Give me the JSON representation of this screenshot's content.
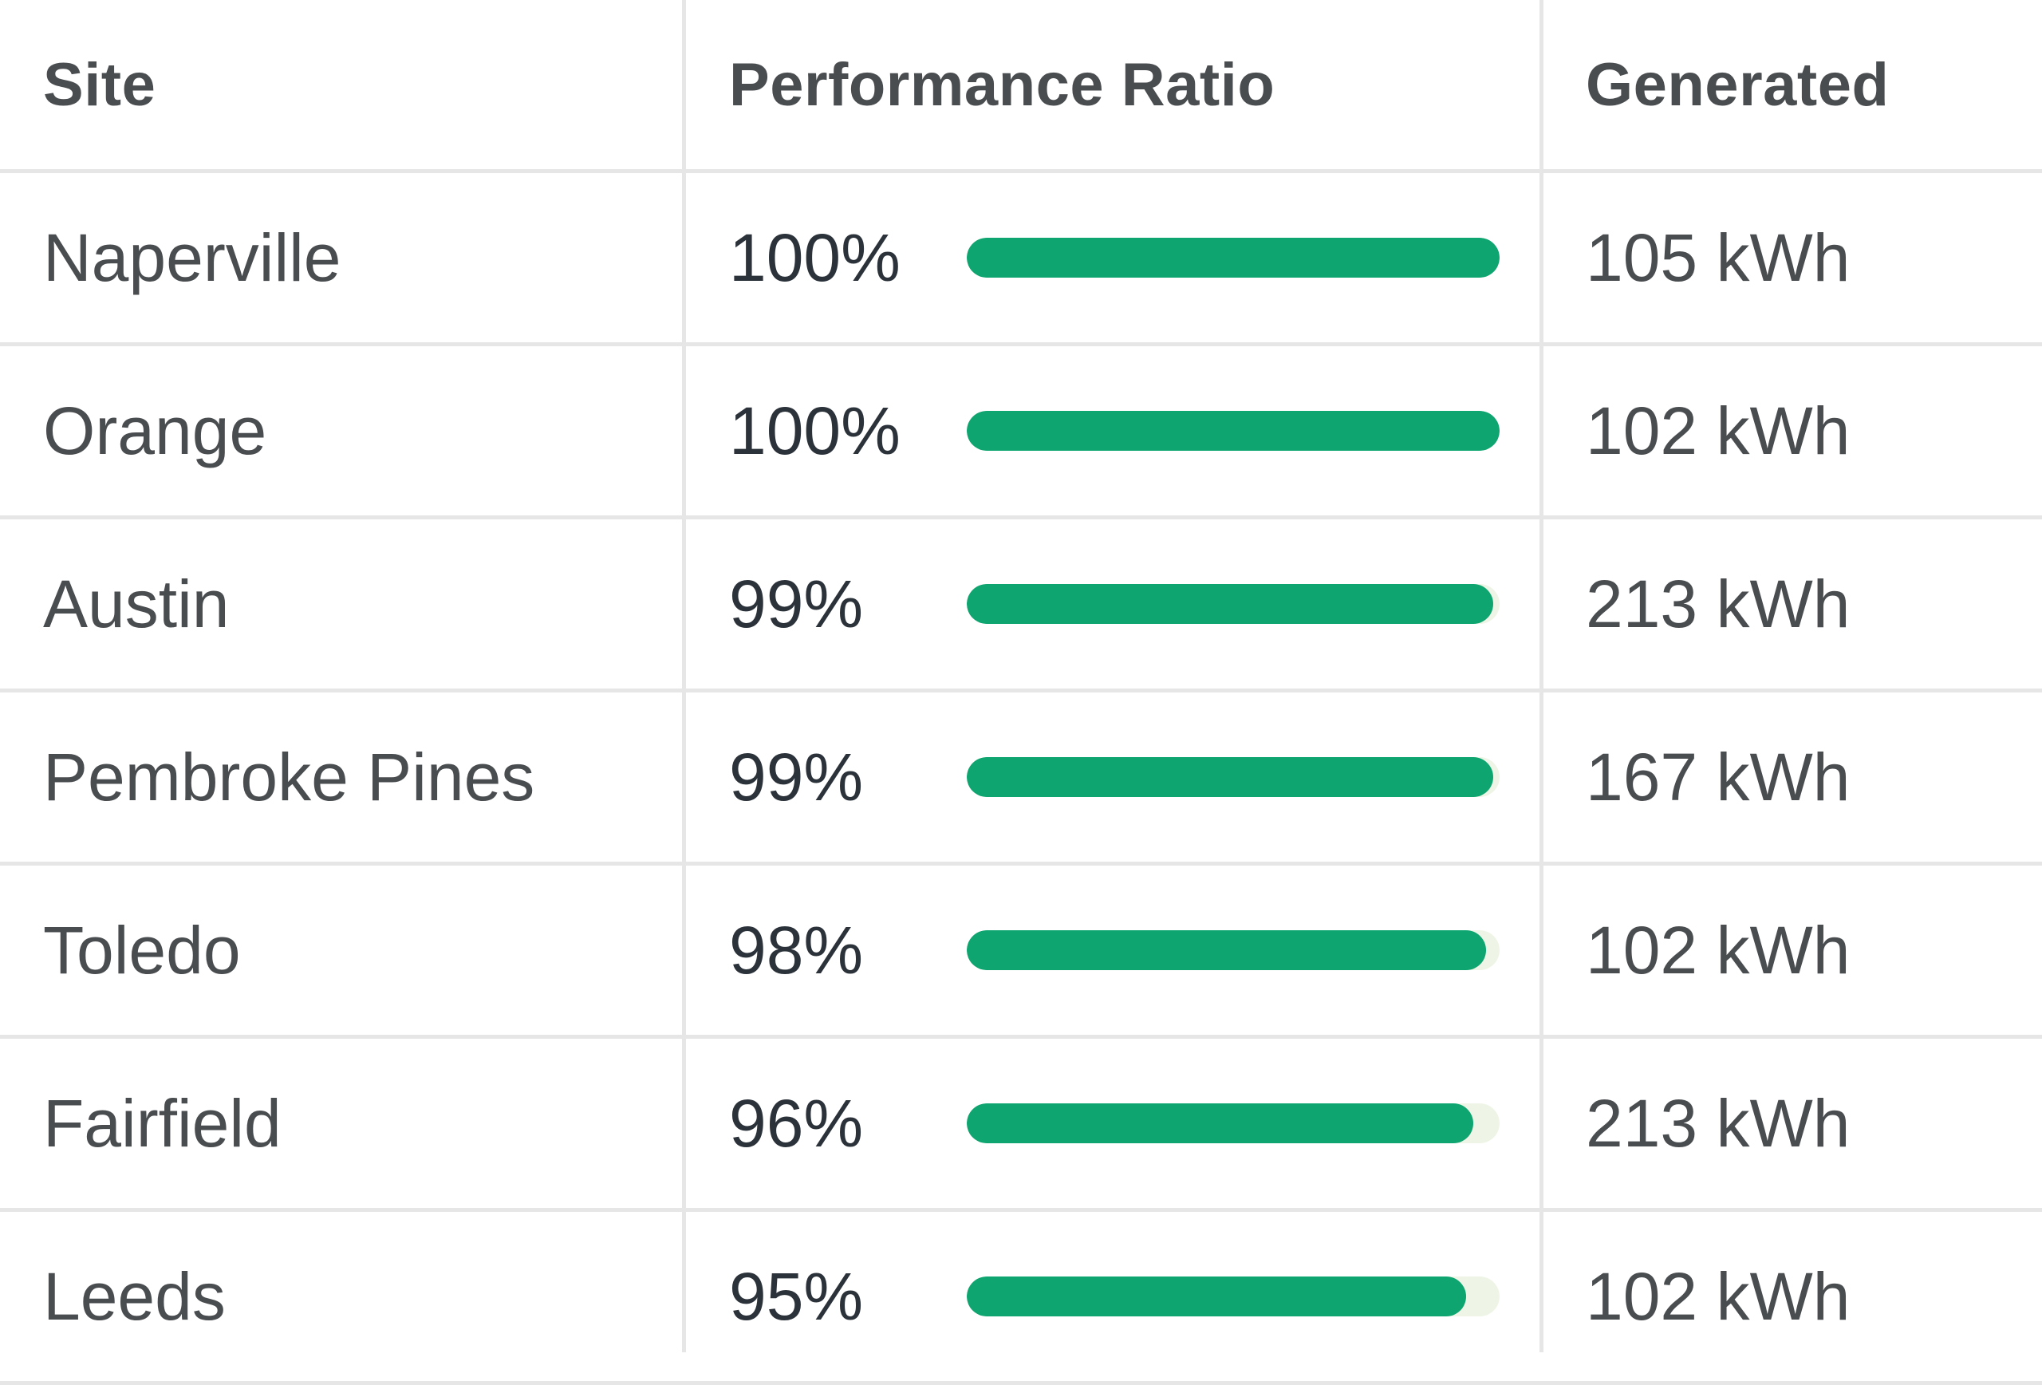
{
  "table": {
    "headers": {
      "site": "Site",
      "performance_ratio": "Performance Ratio",
      "generated": "Generated"
    },
    "rows": [
      {
        "site": "Naperville",
        "ratio_label": "100%",
        "ratio": 100,
        "generated": "105 kWh"
      },
      {
        "site": "Orange",
        "ratio_label": "100%",
        "ratio": 100,
        "generated": "102 kWh"
      },
      {
        "site": "Austin",
        "ratio_label": "99%",
        "ratio": 99,
        "generated": "213 kWh"
      },
      {
        "site": "Pembroke Pines",
        "ratio_label": "99%",
        "ratio": 99,
        "generated": "167 kWh"
      },
      {
        "site": "Toledo",
        "ratio_label": "98%",
        "ratio": 98,
        "generated": "102 kWh"
      },
      {
        "site": "Fairfield",
        "ratio_label": "96%",
        "ratio": 96,
        "generated": "213 kWh"
      },
      {
        "site": "Leeds",
        "ratio_label": "95%",
        "ratio": 95,
        "generated": "102 kWh"
      }
    ]
  },
  "colors": {
    "bar_fill": "#0ea571",
    "bar_track": "#eef5e6",
    "grid_line": "#e6e6e6",
    "text": "#4a4d50"
  },
  "bar_scale": {
    "min_percent": 80,
    "max_percent": 100
  }
}
